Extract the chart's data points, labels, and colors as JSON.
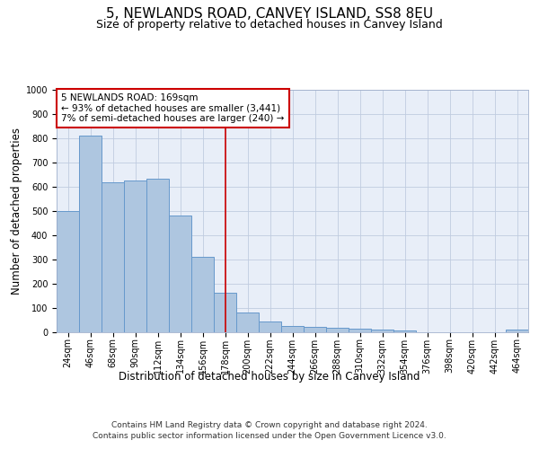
{
  "title": "5, NEWLANDS ROAD, CANVEY ISLAND, SS8 8EU",
  "subtitle": "Size of property relative to detached houses in Canvey Island",
  "xlabel": "Distribution of detached houses by size in Canvey Island",
  "ylabel": "Number of detached properties",
  "footer_line1": "Contains HM Land Registry data © Crown copyright and database right 2024.",
  "footer_line2": "Contains public sector information licensed under the Open Government Licence v3.0.",
  "categories": [
    "24sqm",
    "46sqm",
    "68sqm",
    "90sqm",
    "112sqm",
    "134sqm",
    "156sqm",
    "178sqm",
    "200sqm",
    "222sqm",
    "244sqm",
    "266sqm",
    "288sqm",
    "310sqm",
    "332sqm",
    "354sqm",
    "376sqm",
    "398sqm",
    "420sqm",
    "442sqm",
    "464sqm"
  ],
  "values": [
    500,
    810,
    620,
    625,
    635,
    480,
    310,
    163,
    80,
    45,
    25,
    22,
    20,
    13,
    10,
    7,
    0,
    0,
    0,
    0,
    10
  ],
  "bar_color": "#aec6e0",
  "bar_edge_color": "#6699cc",
  "annotation_box_text": "5 NEWLANDS ROAD: 169sqm\n← 93% of detached houses are smaller (3,441)\n7% of semi-detached houses are larger (240) →",
  "annotation_box_color": "#ffffff",
  "annotation_box_edge_color": "#cc0000",
  "vline_x_index": 7.0,
  "vline_color": "#cc0000",
  "ylim": [
    0,
    1000
  ],
  "yticks": [
    0,
    100,
    200,
    300,
    400,
    500,
    600,
    700,
    800,
    900,
    1000
  ],
  "plot_bg_color": "#e8eef8",
  "title_fontsize": 11,
  "subtitle_fontsize": 9,
  "axis_label_fontsize": 8.5,
  "tick_fontsize": 7,
  "annotation_fontsize": 7.5,
  "footer_fontsize": 6.5
}
